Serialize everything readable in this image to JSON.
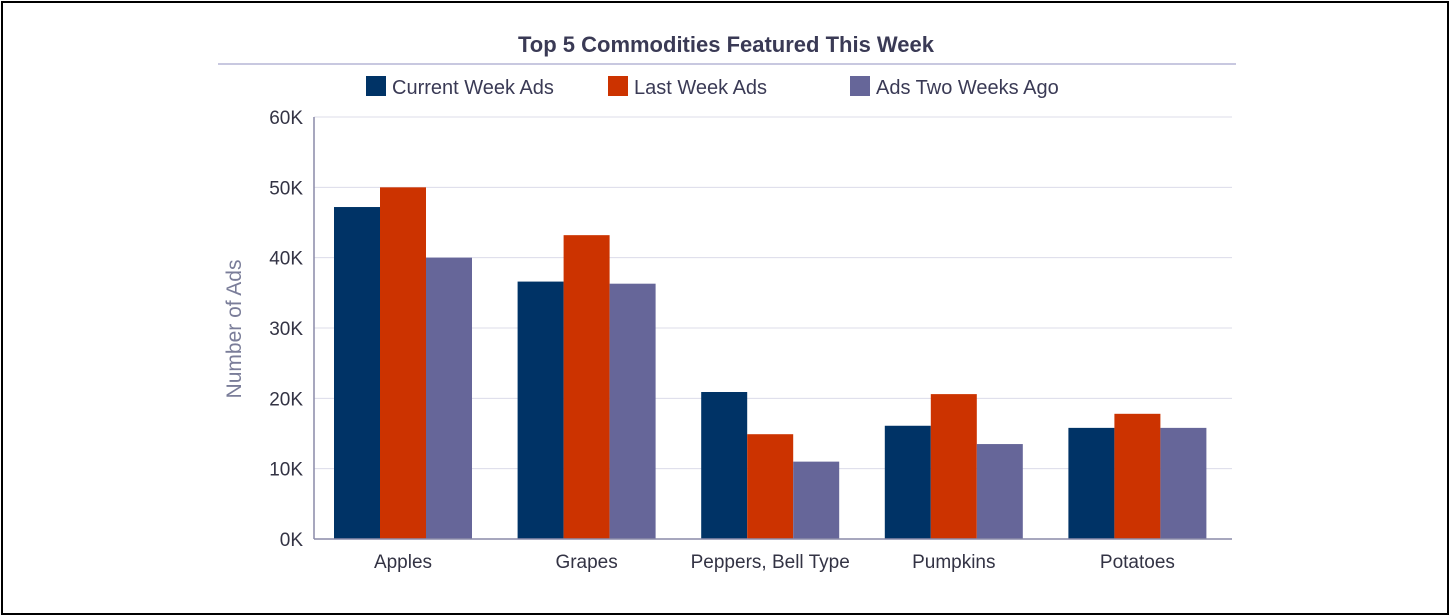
{
  "chart_data": {
    "type": "bar",
    "title": "Top 5 Commodities Featured This Week",
    "ylabel": "Number of Ads",
    "xlabel": "",
    "categories": [
      "Apples",
      "Grapes",
      "Peppers, Bell Type",
      "Pumpkins",
      "Potatoes"
    ],
    "series": [
      {
        "name": "Current Week Ads",
        "color": "#003366",
        "values": [
          47200,
          36600,
          20900,
          16100,
          15800
        ]
      },
      {
        "name": "Last Week Ads",
        "color": "#cc3300",
        "values": [
          50000,
          43200,
          14900,
          20600,
          17800
        ]
      },
      {
        "name": "Ads Two Weeks Ago",
        "color": "#666699",
        "values": [
          40000,
          36300,
          11000,
          13500,
          15800
        ]
      }
    ],
    "ylim": [
      0,
      60000
    ],
    "yticks": [
      0,
      10000,
      20000,
      30000,
      40000,
      50000,
      60000
    ],
    "ytick_labels": [
      "0K",
      "10K",
      "20K",
      "30K",
      "40K",
      "50K",
      "60K"
    ],
    "grid": true,
    "legend_position": "top"
  }
}
